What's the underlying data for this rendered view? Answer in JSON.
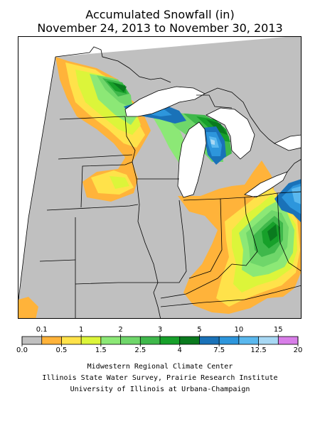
{
  "title": {
    "line1": "Accumulated Snowfall (in)",
    "line2": "November 24, 2013 to November 30, 2013"
  },
  "legend": {
    "bins": [
      {
        "low": "0.0",
        "color": "#c0c0c0"
      },
      {
        "low": "0.1",
        "color": "#ffb33a"
      },
      {
        "low": "0.5",
        "color": "#ffe24a"
      },
      {
        "low": "1",
        "color": "#dcf53a"
      },
      {
        "low": "1.5",
        "color": "#8ce876"
      },
      {
        "low": "2",
        "color": "#6fd66a"
      },
      {
        "low": "2.5",
        "color": "#3fb84b"
      },
      {
        "low": "3",
        "color": "#17a02a"
      },
      {
        "low": "4",
        "color": "#0a7a1e"
      },
      {
        "low": "5",
        "color": "#1a72b8"
      },
      {
        "low": "7.5",
        "color": "#2d96dc"
      },
      {
        "low": "10",
        "color": "#5ab8ee"
      },
      {
        "low": "12.5",
        "color": "#a8d8f4"
      },
      {
        "low": "15",
        "color": "#d87ee8"
      }
    ],
    "top_labels": [
      "0.1",
      "1",
      "2",
      "3",
      "5",
      "10",
      "15"
    ],
    "bottom_labels": [
      "0.0",
      "0.5",
      "1.5",
      "2.5",
      "4",
      "7.5",
      "12.5",
      "20"
    ]
  },
  "credits": {
    "line1": "Midwestern Regional Climate Center",
    "line2": "Illinois State Water Survey, Prairie Research Institute",
    "line3": "University of Illinois at Urbana-Champaign"
  }
}
